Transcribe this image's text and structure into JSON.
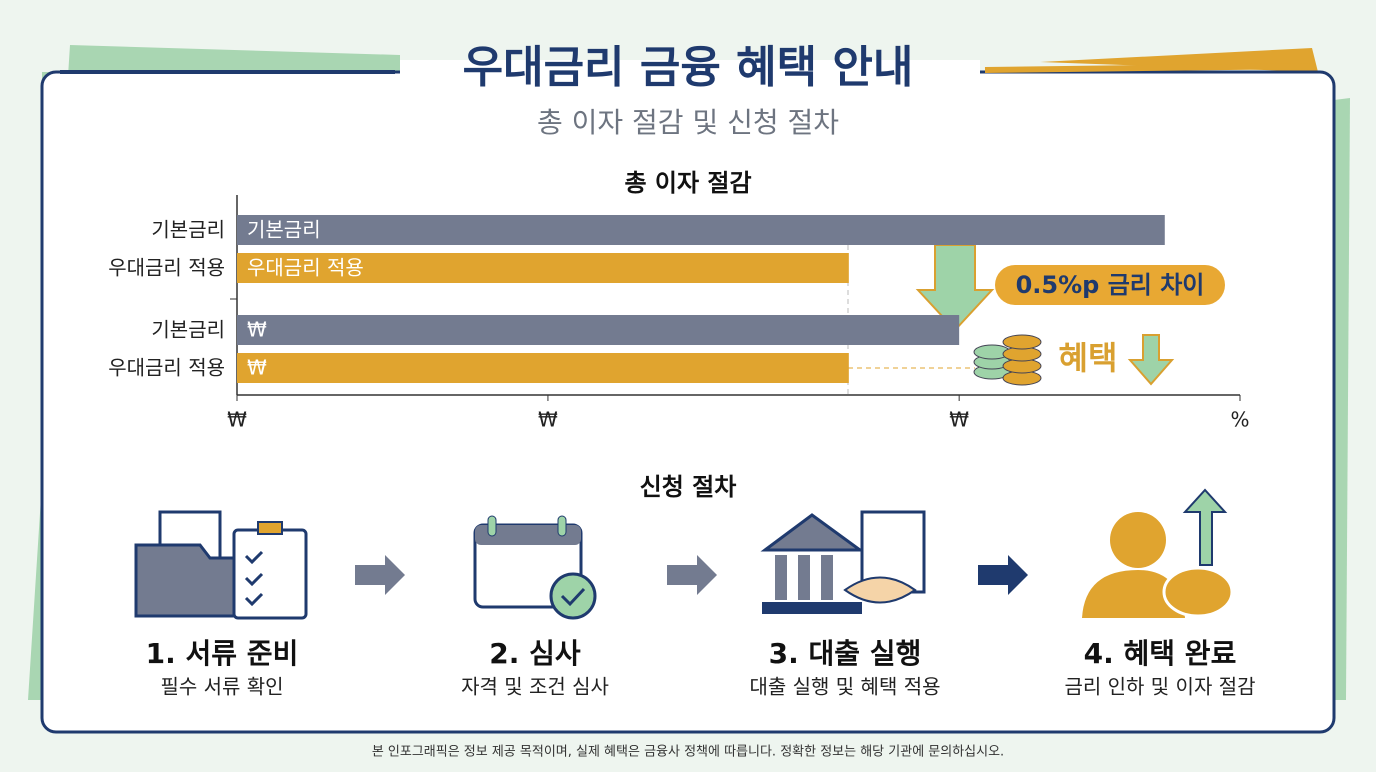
{
  "header": {
    "title": "우대금리 금융 혜택 안내",
    "subtitle": "총 이자 절감 및 신청 절차"
  },
  "chart_data": {
    "type": "bar",
    "orientation": "horizontal",
    "title": "총 이자 절감",
    "categories": [
      "기본금리",
      "우대금리 적용",
      "기본금리",
      "우대금리 적용"
    ],
    "values": [
      92.5,
      61,
      72,
      61
    ],
    "bar_labels": [
      "기본금리",
      "우대금리 적용",
      "₩",
      "₩"
    ],
    "colors": [
      "#737b90",
      "#e0a42f",
      "#737b90",
      "#e0a42f"
    ],
    "xlim": [
      0,
      100
    ],
    "xticks": [
      {
        "value": 0,
        "label": "₩"
      },
      {
        "value": 31,
        "label": "₩"
      },
      {
        "value": 72,
        "label": "₩"
      },
      {
        "value": 100,
        "label": "%"
      }
    ],
    "annotations": [
      "0.5%p 금리 차이",
      "혜택"
    ]
  },
  "process": {
    "title": "신청 절차",
    "steps": [
      {
        "title": "1. 서류 준비",
        "desc": "필수 서류 확인"
      },
      {
        "title": "2. 심사",
        "desc": "자격 및 조건 심사"
      },
      {
        "title": "3. 대출 실행",
        "desc": "대출 실행 및 혜택 적용"
      },
      {
        "title": "4. 혜택 완료",
        "desc": "금리 인하 및 이자 절감"
      }
    ]
  },
  "footer": "본 인포그래픽은 정보 제공 목적이며, 실제 혜택은 금융사 정책에 따릅니다. 정확한 정보는 해당 기관에 문의하십시오."
}
